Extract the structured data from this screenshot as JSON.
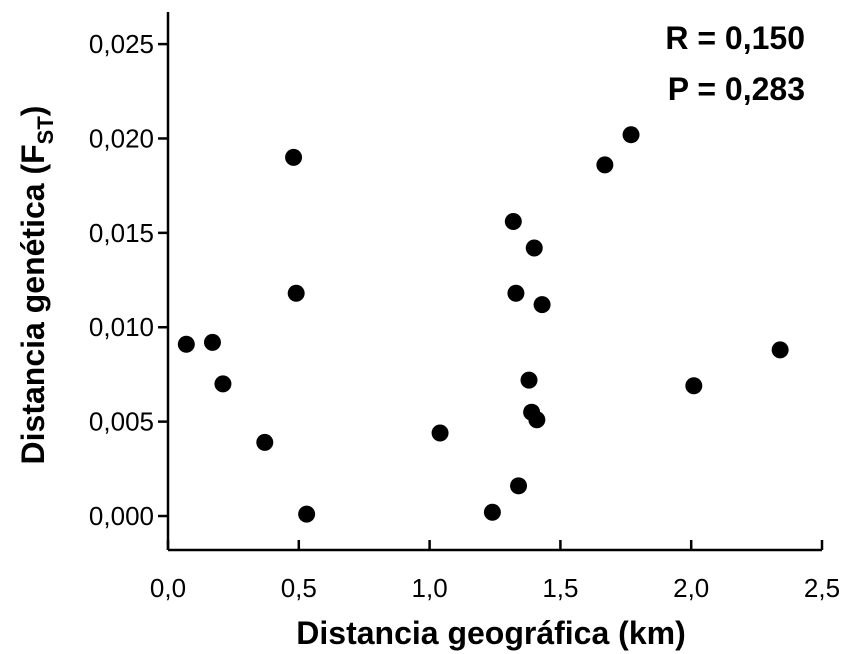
{
  "chart_data": {
    "type": "scatter",
    "xlabel": "Distancia geográfica (km)",
    "ylabel_main": "Distancia genética (F",
    "ylabel_sub": "ST",
    "ylabel_close": ")",
    "xlim": [
      0.0,
      2.5
    ],
    "ylim": [
      -0.0018,
      0.0267
    ],
    "x_ticks": [
      "0,0",
      "0,5",
      "1,0",
      "1,5",
      "2,0",
      "2,5"
    ],
    "x_tick_values": [
      0.0,
      0.5,
      1.0,
      1.5,
      2.0,
      2.5
    ],
    "y_ticks": [
      "0,000",
      "0,005",
      "0,010",
      "0,015",
      "0,020",
      "0,025"
    ],
    "y_tick_values": [
      0.0,
      0.005,
      0.01,
      0.015,
      0.02,
      0.025
    ],
    "annotations": [
      "R = 0,150",
      "P = 0,283"
    ],
    "grid": false,
    "point_color": "#000000",
    "points": [
      {
        "x": 0.07,
        "y": 0.0091
      },
      {
        "x": 0.17,
        "y": 0.0092
      },
      {
        "x": 0.21,
        "y": 0.007
      },
      {
        "x": 0.37,
        "y": 0.0039
      },
      {
        "x": 0.48,
        "y": 0.019
      },
      {
        "x": 0.49,
        "y": 0.0118
      },
      {
        "x": 0.53,
        "y": 0.0001
      },
      {
        "x": 1.04,
        "y": 0.0044
      },
      {
        "x": 1.24,
        "y": 0.0002
      },
      {
        "x": 1.32,
        "y": 0.0156
      },
      {
        "x": 1.33,
        "y": 0.0118
      },
      {
        "x": 1.34,
        "y": 0.0016
      },
      {
        "x": 1.38,
        "y": 0.0072
      },
      {
        "x": 1.39,
        "y": 0.0055
      },
      {
        "x": 1.4,
        "y": 0.0142
      },
      {
        "x": 1.41,
        "y": 0.0051
      },
      {
        "x": 1.43,
        "y": 0.0112
      },
      {
        "x": 1.67,
        "y": 0.0186
      },
      {
        "x": 1.77,
        "y": 0.0202
      },
      {
        "x": 2.01,
        "y": 0.0069
      },
      {
        "x": 2.34,
        "y": 0.0088
      }
    ]
  }
}
